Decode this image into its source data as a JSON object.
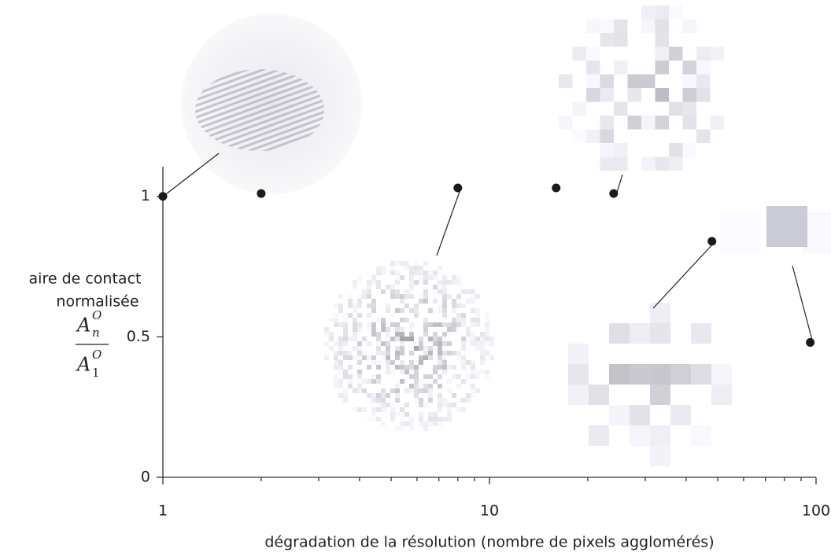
{
  "chart_data": {
    "type": "scatter",
    "x_label": "dégradation de la résolution (nombre de pixels agglomérés)",
    "y_label": [
      "aire de contact",
      "normalisée"
    ],
    "y_label_math": {
      "numerator": {
        "base": "A",
        "sub": "n",
        "sup": "O"
      },
      "denominator": {
        "base": "A",
        "sub": "1",
        "sup": "O"
      }
    },
    "x": [
      1,
      2,
      8,
      16,
      24,
      48,
      96
    ],
    "values": [
      1.0,
      1.01,
      1.03,
      1.03,
      1.01,
      0.84,
      0.48
    ],
    "color": "#1a1a1a",
    "xscale": "log",
    "xlim": [
      1,
      100
    ],
    "xticks": [
      1,
      10,
      100
    ],
    "xminor_ticks": [
      2,
      3,
      4,
      5,
      6,
      7,
      8,
      9,
      20,
      30,
      40,
      50,
      60,
      70,
      80,
      90
    ],
    "ylim": [
      0,
      1.1
    ],
    "yticks": [
      0,
      0.5,
      1
    ],
    "grid": false
  }
}
